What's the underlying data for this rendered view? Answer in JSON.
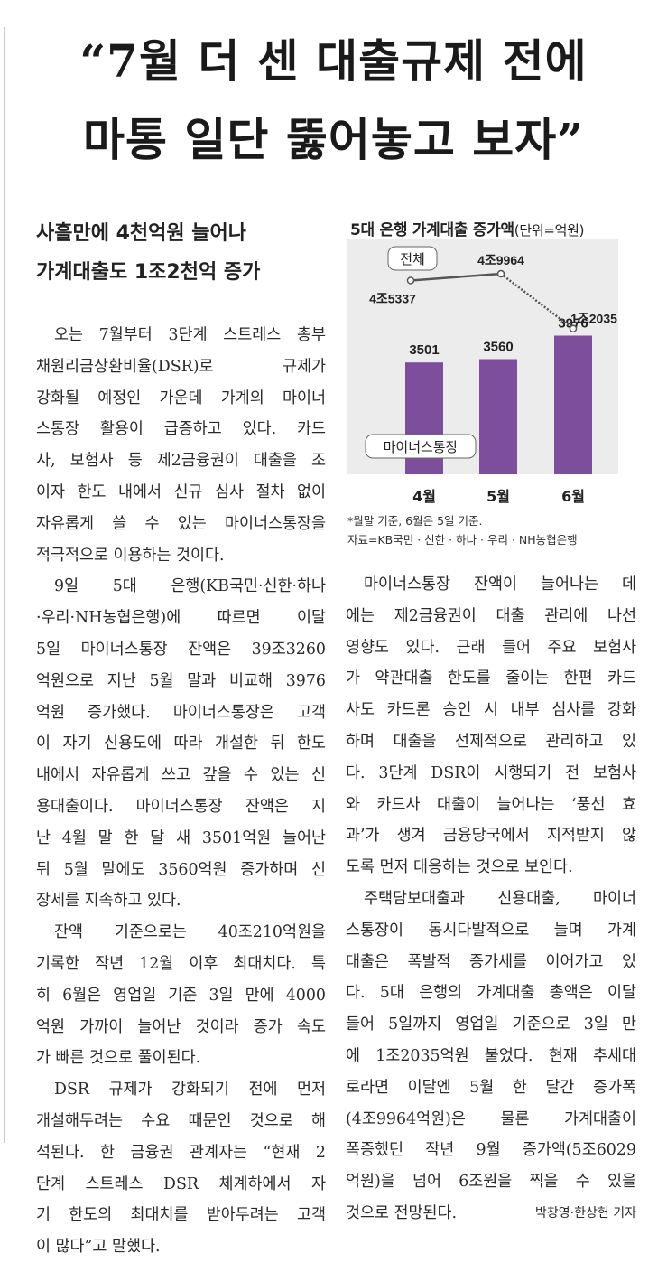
{
  "headline": {
    "line1": "“7월 더 센 대출규제 전에",
    "line2": "마통 일단 뚫어놓고 보자”"
  },
  "subheadline": {
    "line1": "사흘만에 4천억원 늘어나",
    "line2": "가계대출도 1조2천억 증가"
  },
  "body_left": [
    "오는 7월부터 3단계 스트레스 총부",
    "채원리금상환비율(DSR)로 규제가",
    "강화될 예정인 가운데 가계의 마이너",
    "스통장 활용이 급증하고 있다. 카드",
    "사, 보험사 등 제2금융권이 대출을 조",
    "이자 한도 내에서 신규 심사 절차 없이",
    "자유롭게 쓸 수 있는 마이너스통장을",
    "적극적으로 이용하는 것이다.",
    "9일 5대 은행(KB국민·신한·하나",
    "·우리·NH농협은행)에 따르면 이달",
    "5일 마이너스통장 잔액은 39조3260",
    "억원으로 지난 5월 말과 비교해 3976",
    "억원 증가했다. 마이너스통장은 고객",
    "이 자기 신용도에 따라 개설한 뒤 한도",
    "내에서 자유롭게 쓰고 갚을 수 있는 신",
    "용대출이다. 마이너스통장 잔액은 지",
    "난 4월 말 한 달 새 3501억원 늘어난",
    "뒤 5월 말에도 3560억원 증가하며 신",
    "장세를 지속하고 있다.",
    "잔액 기준으로는 40조210억원을",
    "기록한 작년 12월 이후 최대치다. 특",
    "히 6월은 영업일 기준 3일 만에 4000",
    "억원 가까이 늘어난 것이라 증가 속도",
    "가 빠른 것으로 풀이된다.",
    "DSR 규제가 강화되기 전에 먼저",
    "개설해두려는 수요 때문인 것으로 해",
    "석된다. 한 금융권 관계자는 “현재 2",
    "단계 스트레스 DSR 체계하에서 자",
    "기 한도의 최대치를 받아두려는 고객",
    "이 많다”고 말했다."
  ],
  "body_right": [
    "마이너스통장 잔액이 늘어나는 데",
    "에는 제2금융권이 대출 관리에 나선",
    "영향도 있다. 근래 들어 주요 보험사",
    "가 약관대출 한도를 줄이는 한편 카드",
    "사도 카드론 승인 시 내부 심사를 강화",
    "하며 대출을 선제적으로 관리하고 있",
    "다. 3단계 DSR이 시행되기 전 보험사",
    "와 카드사 대출이 늘어나는 ‘풍선 효",
    "과’가 생겨 금융당국에서 지적받지 않",
    "도록 먼저 대응하는 것으로 보인다.",
    "주택담보대출과 신용대출, 마이너",
    "스통장이 동시다발적으로 늘며 가계",
    "대출은 폭발적 증가세를 이어가고 있",
    "다. 5대 은행의 가계대출 총액은 이달",
    "들어 5일까지 영업일 기준으로 3일 만",
    "에 1조2035억원 불었다. 현재 추세대",
    "로라면 이달엔 5월 한 달간 증가폭",
    "(4조9964억원)은 물론 가계대출이",
    "폭증했던 작년 9월 증가액(5조6029",
    "억원)을 넘어 6조원을 찍을 수 있을",
    "것으로 전망된다."
  ],
  "byline": "박창영·한상헌 기자",
  "chart_data": {
    "type": "bar+line",
    "title": "5대 은행 가계대출 증가액",
    "unit": "(단위=억원)",
    "categories": [
      "4월",
      "5월",
      "6월"
    ],
    "series": [
      {
        "name": "전체",
        "type": "line",
        "values": [
          45337,
          49964,
          12035
        ],
        "labels": [
          "4조5337",
          "4조9964",
          "1조2035"
        ]
      },
      {
        "name": "마이너스통장",
        "type": "bar",
        "values": [
          3501,
          3560,
          3976
        ],
        "labels": [
          "3501",
          "3560",
          "3976"
        ]
      }
    ],
    "colors": {
      "bar": "#7d4e9c",
      "line": "#555555",
      "background": "#ececec"
    },
    "notes": [
      "*월말 기준, 6월은 5일 기준.",
      "자료=KB국민 · 신한 · 하나 · 우리 · NH농협은행"
    ]
  }
}
